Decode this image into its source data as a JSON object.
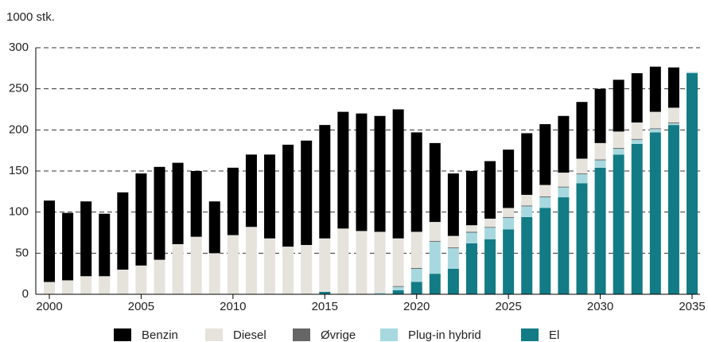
{
  "chart_data": {
    "type": "bar",
    "stacked": true,
    "y_axis_label": "1000 stk.",
    "x": [
      2000,
      2001,
      2002,
      2003,
      2004,
      2005,
      2006,
      2007,
      2008,
      2009,
      2010,
      2011,
      2012,
      2013,
      2014,
      2015,
      2016,
      2017,
      2018,
      2019,
      2020,
      2021,
      2022,
      2023,
      2024,
      2025,
      2026,
      2027,
      2028,
      2029,
      2030,
      2031,
      2032,
      2033,
      2034,
      2035
    ],
    "series": [
      {
        "name": "Benzin",
        "color": "#000000",
        "values": [
          99,
          82,
          91,
          76,
          94,
          112,
          113,
          99,
          80,
          63,
          82,
          88,
          102,
          124,
          127,
          138,
          142,
          143,
          141,
          157,
          121,
          96,
          76,
          66,
          70,
          71,
          75,
          74,
          69,
          69,
          66,
          63,
          60,
          55,
          49,
          0
        ]
      },
      {
        "name": "Diesel",
        "color": "#e6e3dd",
        "values": [
          15,
          17,
          22,
          22,
          30,
          35,
          42,
          61,
          70,
          50,
          72,
          82,
          68,
          58,
          60,
          65,
          80,
          77,
          74,
          58,
          44,
          23,
          14,
          8,
          10,
          11,
          13,
          14,
          17,
          18,
          20,
          20,
          20,
          20,
          18,
          1
        ]
      },
      {
        "name": "Øvrige",
        "color": "#666666",
        "values": [
          0,
          0,
          0,
          0,
          0,
          0,
          0,
          0,
          0,
          0,
          0,
          0,
          0,
          0,
          0,
          0,
          0,
          0,
          0,
          1,
          1,
          1,
          1,
          1,
          1,
          1,
          1,
          1,
          1,
          1,
          1,
          1,
          1,
          1,
          1,
          0
        ]
      },
      {
        "name": "Plug-in hybrid",
        "color": "#a8d8df",
        "values": [
          0,
          0,
          0,
          0,
          0,
          0,
          0,
          0,
          0,
          0,
          0,
          0,
          0,
          0,
          0,
          0,
          0,
          0,
          2,
          4,
          16,
          39,
          25,
          13,
          14,
          14,
          13,
          13,
          12,
          11,
          9,
          7,
          5,
          4,
          2,
          1
        ]
      },
      {
        "name": "El",
        "color": "#137b85",
        "values": [
          0,
          0,
          0,
          0,
          0,
          0,
          0,
          0,
          0,
          0,
          0,
          0,
          0,
          0,
          0,
          3,
          0,
          0,
          0,
          5,
          15,
          25,
          31,
          62,
          67,
          79,
          94,
          105,
          118,
          135,
          154,
          170,
          183,
          197,
          206,
          269
        ]
      }
    ],
    "xlim": [
      2000,
      2035
    ],
    "xticks": [
      2000,
      2005,
      2010,
      2015,
      2020,
      2025,
      2030,
      2035
    ],
    "ylim": [
      0,
      300
    ],
    "yticks": [
      0,
      50,
      100,
      150,
      200,
      250,
      300
    ],
    "grid": true,
    "legend": "bottom"
  }
}
